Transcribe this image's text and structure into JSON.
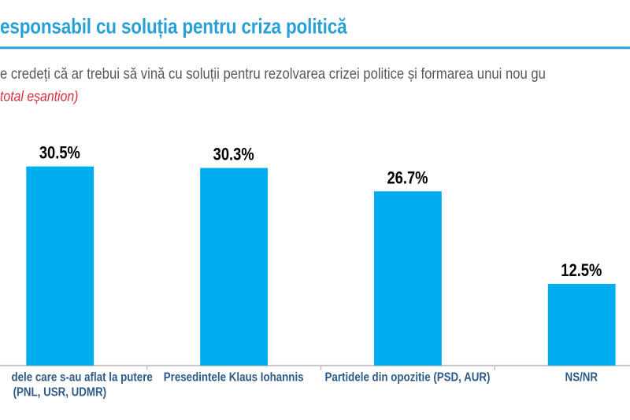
{
  "slide": {
    "title": "esponsabil cu soluția pentru criza politică",
    "subtitle": "e credeți că ar trebui să vină cu soluții pentru rezolvarea crizei politice și formarea unui nou gu",
    "note": "total eșantion)"
  },
  "chart_data": {
    "type": "bar",
    "title": "esponsabil cu soluția pentru criza politică",
    "subtitle": "e credeți că ar trebui să vină cu soluții pentru rezolvarea crizei politice și formarea unui nou gu",
    "annotation": "total eșantion)",
    "categories": [
      "dele care s-au aflat la putere (PNL, USR, UDMR)",
      "Presedintele Klaus Iohannis",
      "Partidele din opozitie (PSD, AUR)",
      "NS/NR"
    ],
    "category_lines": [
      [
        "dele care s-au aflat la putere",
        "(PNL, USR, UDMR)"
      ],
      [
        "Presedintele Klaus Iohannis"
      ],
      [
        "Partidele din opozitie (PSD, AUR)"
      ],
      [
        "NS/NR"
      ]
    ],
    "values": [
      30.5,
      30.3,
      26.7,
      12.5
    ],
    "value_labels": [
      "30.5%",
      "30.3%",
      "26.7%",
      "12.5%"
    ],
    "xlabel": "",
    "ylabel": "",
    "ylim": [
      0,
      35
    ],
    "grid": false,
    "legend": "none",
    "colors": {
      "bar": "#00AEEF",
      "accent": "#28A0D7",
      "subtitle_text": "#58595B",
      "note_text": "#D5303E",
      "category_label": "#2D5A87",
      "value_label": "#000000",
      "axis": "#C7C7C7"
    }
  }
}
